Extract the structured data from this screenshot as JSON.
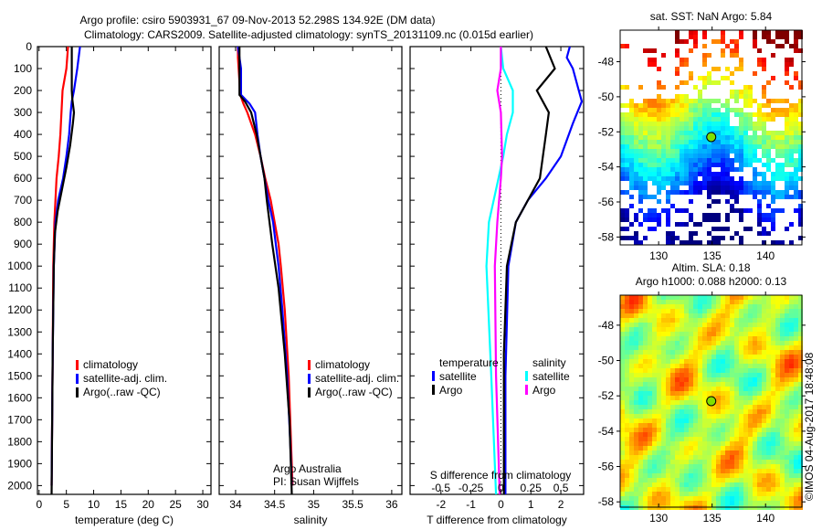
{
  "title_line1": "Argo profile: csiro 5903931_67 09-Nov-2013 52.298S 134.92E (DM data)",
  "title_line2": "Climatology: CARS2009. Satellite-adjusted climatology: synTS_20131109.nc (0.015d earlier)",
  "credit": "©IMOS 04-Aug-2017 18:48:08",
  "chart_data": [
    {
      "type": "line",
      "name": "temperature",
      "xlabel": "temperature (deg C)",
      "ylabel": "",
      "xlim": [
        -0.3,
        31.5
      ],
      "ylim": [
        2040,
        0
      ],
      "xticks": [
        "0",
        "5",
        "10",
        "15",
        "20",
        "25",
        "30"
      ],
      "xtick_values": [
        0,
        5,
        10,
        15,
        20,
        25,
        30
      ],
      "yticks": [
        "0",
        "100",
        "200",
        "300",
        "400",
        "500",
        "600",
        "700",
        "800",
        "900",
        "1000",
        "1100",
        "1200",
        "1300",
        "1400",
        "1500",
        "1600",
        "1700",
        "1800",
        "1900",
        "2000"
      ],
      "legend": [
        "climatology",
        "satellite-adj. clim.",
        "Argo(..raw -QC)"
      ],
      "series": [
        {
          "name": "climatology",
          "color": "#ff0000",
          "points": [
            [
              0,
              5.3
            ],
            [
              100,
              5.0
            ],
            [
              200,
              4.3
            ],
            [
              300,
              4.1
            ],
            [
              400,
              3.9
            ],
            [
              500,
              3.6
            ],
            [
              600,
              3.2
            ],
            [
              700,
              3.0
            ],
            [
              800,
              2.8
            ],
            [
              1000,
              2.6
            ],
            [
              1400,
              2.5
            ],
            [
              2000,
              2.3
            ]
          ]
        },
        {
          "name": "satellite-adj. clim.",
          "color": "#0000ff",
          "points": [
            [
              0,
              7.5
            ],
            [
              100,
              7.0
            ],
            [
              200,
              6.4
            ],
            [
              250,
              6.0
            ],
            [
              300,
              5.8
            ],
            [
              400,
              5.5
            ],
            [
              500,
              5.0
            ],
            [
              600,
              4.4
            ],
            [
              700,
              3.5
            ],
            [
              800,
              3.0
            ],
            [
              1000,
              2.7
            ],
            [
              1400,
              2.5
            ],
            [
              2000,
              2.3
            ]
          ]
        },
        {
          "name": "Argo(..raw -QC)",
          "color": "#000000",
          "points": [
            [
              0,
              6.0
            ],
            [
              200,
              6.0
            ],
            [
              240,
              6.1
            ],
            [
              300,
              6.4
            ],
            [
              350,
              6.2
            ],
            [
              450,
              5.7
            ],
            [
              550,
              5.0
            ],
            [
              650,
              4.2
            ],
            [
              750,
              3.4
            ],
            [
              850,
              2.9
            ],
            [
              1000,
              2.7
            ],
            [
              1400,
              2.5
            ],
            [
              2040,
              2.3
            ]
          ]
        }
      ]
    },
    {
      "type": "line",
      "name": "salinity",
      "xlabel": "salinity",
      "xlim": [
        33.79,
        36.13
      ],
      "ylim": [
        2040,
        0
      ],
      "xticks": [
        "34",
        "34.5",
        "35",
        "35.5",
        "36"
      ],
      "xtick_values": [
        34,
        34.5,
        35,
        35.5,
        36
      ],
      "legend": [
        "climatology",
        "satellite-adj. clim.",
        "Argo(..raw -QC)"
      ],
      "annotation": [
        "Argo Australia",
        "PI: Susan Wijffels"
      ],
      "series": [
        {
          "name": "climatology",
          "color": "#ff0000",
          "points": [
            [
              0,
              34.03
            ],
            [
              50,
              34.03
            ],
            [
              220,
              34.06
            ],
            [
              260,
              34.1
            ],
            [
              300,
              34.15
            ],
            [
              400,
              34.25
            ],
            [
              500,
              34.32
            ],
            [
              600,
              34.38
            ],
            [
              700,
              34.45
            ],
            [
              800,
              34.5
            ],
            [
              900,
              34.55
            ],
            [
              1000,
              34.58
            ],
            [
              1200,
              34.63
            ],
            [
              1500,
              34.68
            ],
            [
              1800,
              34.71
            ],
            [
              2000,
              34.73
            ]
          ]
        },
        {
          "name": "satellite-adj. clim.",
          "color": "#0000ff",
          "points": [
            [
              0,
              34.03
            ],
            [
              100,
              34.07
            ],
            [
              220,
              34.07
            ],
            [
              260,
              34.18
            ],
            [
              300,
              34.25
            ],
            [
              400,
              34.28
            ],
            [
              500,
              34.32
            ],
            [
              600,
              34.37
            ],
            [
              700,
              34.42
            ],
            [
              800,
              34.48
            ],
            [
              1000,
              34.55
            ],
            [
              1200,
              34.6
            ],
            [
              1500,
              34.66
            ],
            [
              1800,
              34.7
            ],
            [
              2000,
              34.72
            ]
          ]
        },
        {
          "name": "Argo(..raw -QC)",
          "color": "#000000",
          "points": [
            [
              0,
              34.05
            ],
            [
              220,
              34.05
            ],
            [
              250,
              34.12
            ],
            [
              300,
              34.2
            ],
            [
              400,
              34.27
            ],
            [
              500,
              34.32
            ],
            [
              600,
              34.37
            ],
            [
              700,
              34.4
            ],
            [
              900,
              34.47
            ],
            [
              1100,
              34.55
            ],
            [
              1400,
              34.63
            ],
            [
              1700,
              34.69
            ],
            [
              2040,
              34.72
            ]
          ]
        }
      ]
    },
    {
      "type": "line",
      "name": "difference",
      "xlabel": "T difference from climatology",
      "x2label": "S difference from climatology",
      "xlim": [
        -3.03,
        2.76
      ],
      "x2lim": [
        -0.757,
        0.69
      ],
      "ylim": [
        2040,
        0
      ],
      "xticks": [
        "-2",
        "-1",
        "0",
        "1",
        "2"
      ],
      "xtick_values": [
        -2,
        -1,
        0,
        1,
        2
      ],
      "x2ticks": [
        "-0.5",
        "-0.25",
        "0",
        "0.25",
        "0.5"
      ],
      "x2tick_values": [
        -0.5,
        -0.25,
        0,
        0.25,
        0.5
      ],
      "legend_temperature": {
        "title": "temperature",
        "items": [
          "satellite",
          "Argo"
        ]
      },
      "legend_salinity": {
        "title": "salinity",
        "items": [
          "satellite",
          "Argo"
        ]
      },
      "series": [
        {
          "name": "T satellite",
          "axis": "T",
          "color": "#0000ff",
          "points": [
            [
              0,
              2.3
            ],
            [
              50,
              2.2
            ],
            [
              100,
              2.4
            ],
            [
              200,
              2.6
            ],
            [
              250,
              2.7
            ],
            [
              350,
              2.4
            ],
            [
              500,
              2.0
            ],
            [
              600,
              1.5
            ],
            [
              700,
              0.9
            ],
            [
              800,
              0.5
            ],
            [
              1000,
              0.25
            ],
            [
              1500,
              0.15
            ],
            [
              2040,
              0.15
            ]
          ]
        },
        {
          "name": "T Argo",
          "axis": "T",
          "color": "#000000",
          "points": [
            [
              0,
              1.5
            ],
            [
              100,
              1.8
            ],
            [
              200,
              1.2
            ],
            [
              300,
              1.6
            ],
            [
              400,
              1.5
            ],
            [
              500,
              1.4
            ],
            [
              600,
              1.3
            ],
            [
              700,
              0.9
            ],
            [
              800,
              0.5
            ],
            [
              1000,
              0.2
            ],
            [
              1400,
              0.1
            ],
            [
              2040,
              0.1
            ]
          ]
        },
        {
          "name": "S satellite",
          "axis": "S",
          "color": "#00ffff",
          "points": [
            [
              0,
              0
            ],
            [
              100,
              0.02
            ],
            [
              200,
              0.1
            ],
            [
              300,
              0.1
            ],
            [
              400,
              0.05
            ],
            [
              500,
              0.02
            ],
            [
              600,
              -0.02
            ],
            [
              800,
              -0.1
            ],
            [
              1000,
              -0.12
            ],
            [
              1500,
              -0.08
            ],
            [
              2040,
              -0.04
            ]
          ]
        },
        {
          "name": "S Argo",
          "axis": "S",
          "color": "#ff00ff",
          "points": [
            [
              0,
              0
            ],
            [
              100,
              0
            ],
            [
              200,
              -0.03
            ],
            [
              300,
              0
            ],
            [
              500,
              0.01
            ],
            [
              600,
              0
            ],
            [
              800,
              -0.03
            ],
            [
              1000,
              -0.05
            ],
            [
              1500,
              -0.04
            ],
            [
              2040,
              -0.01
            ]
          ]
        }
      ]
    },
    {
      "type": "heatmap",
      "name": "sst-map",
      "title": "sat. SST: NaN Argo: 5.84",
      "xlim": [
        126.4,
        143.4
      ],
      "ylim": [
        -58.45,
        -46.2
      ],
      "xticks": [
        "130",
        "135",
        "140"
      ],
      "xtick_values": [
        130,
        135,
        140
      ],
      "yticks": [
        "-48",
        "-50",
        "-52",
        "-54",
        "-56",
        "-58"
      ],
      "ytick_values": [
        -48,
        -50,
        -52,
        -54,
        -56,
        -58
      ],
      "marker": {
        "lon": 134.92,
        "lat": -52.298
      }
    },
    {
      "type": "heatmap",
      "name": "sla-map",
      "title": [
        "Altim. SLA: 0.18",
        "Argo h1000: 0.088 h2000: 0.13"
      ],
      "xlim": [
        126.4,
        143.4
      ],
      "ylim": [
        -58.3,
        -46.3
      ],
      "xticks": [
        "130",
        "135",
        "140"
      ],
      "xtick_values": [
        130,
        135,
        140
      ],
      "yticks": [
        "-48",
        "-50",
        "-52",
        "-54",
        "-56",
        "-58"
      ],
      "ytick_values": [
        -48,
        -50,
        -52,
        -54,
        -56,
        -58
      ],
      "marker": {
        "lon": 134.92,
        "lat": -52.298
      }
    }
  ]
}
